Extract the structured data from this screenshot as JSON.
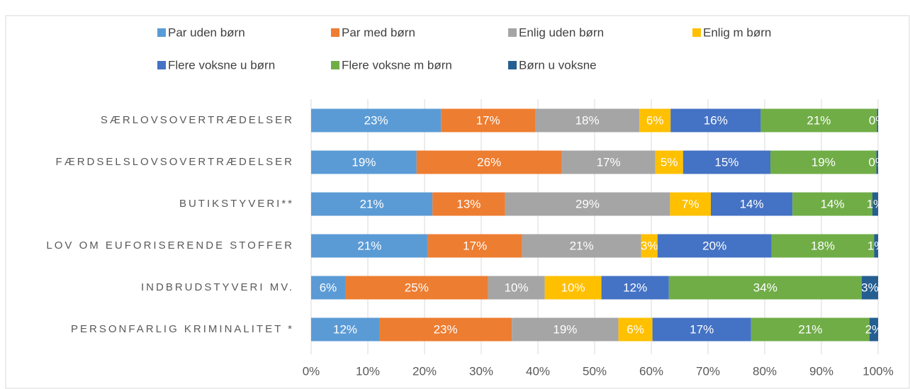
{
  "chart_data": {
    "type": "stacked_barh",
    "categories": [
      "SÆRLOVSOVERTRÆDELSER",
      "FÆRDSELSLOVSOVERTRÆDELSER",
      "BUTIKSTYVERI**",
      "LOV OM EUFORISERENDE STOFFER",
      "INDBRUDSTYVERI MV.",
      "PERSONFARLIG KRIMINALITET *"
    ],
    "series": [
      {
        "name": "Par uden børn",
        "color": "#5b9bd5",
        "values": [
          22.9,
          18.6,
          21.4,
          20.6,
          6,
          12
        ],
        "value_labels": [
          "23%",
          "19%",
          "21%",
          "21%",
          "6%",
          "12%"
        ]
      },
      {
        "name": "Par med børn",
        "color": "#ed7d31",
        "values": [
          16.6,
          25.6,
          12.8,
          16.6,
          25.2,
          23.4
        ],
        "value_labels": [
          "17%",
          "26%",
          "13%",
          "17%",
          "25%",
          "23%"
        ]
      },
      {
        "name": "Enlig uden børn",
        "color": "#a5a5a5",
        "values": [
          18.4,
          16.5,
          29.1,
          21,
          10,
          18.8
        ],
        "value_labels": [
          "18%",
          "17%",
          "29%",
          "21%",
          "10%",
          "19%"
        ]
      },
      {
        "name": "Enlig m børn",
        "color": "#ffc000",
        "values": [
          5.5,
          4.9,
          7.2,
          2.9,
          10,
          6
        ],
        "value_labels": [
          "6%",
          "5%",
          "7%",
          "3%",
          "10%",
          "6%"
        ]
      },
      {
        "name": "Flere voksne u børn",
        "color": "#4472c4",
        "values": [
          15.9,
          15.4,
          14.4,
          20.1,
          11.9,
          17.4
        ],
        "value_labels": [
          "16%",
          "15%",
          "14%",
          "20%",
          "12%",
          "17%"
        ]
      },
      {
        "name": "Flere voksne m børn",
        "color": "#70ad47",
        "values": [
          20.5,
          18.7,
          14.1,
          18.1,
          34,
          20.9
        ],
        "value_labels": [
          "21%",
          "19%",
          "14%",
          "18%",
          "34%",
          "21%"
        ]
      },
      {
        "name": "Børn u voksne",
        "color": "#255e91",
        "values": [
          0.2,
          0.3,
          1,
          0.7,
          2.9,
          1.5
        ],
        "value_labels": [
          "0%",
          "0%",
          "1%",
          "1%",
          "3%",
          "2%"
        ]
      }
    ],
    "xlim": [
      0,
      100
    ],
    "xticks": [
      {
        "value": 0,
        "label": "0%"
      },
      {
        "value": 10,
        "label": "10%"
      },
      {
        "value": 20,
        "label": "20%"
      },
      {
        "value": 30,
        "label": "30%"
      },
      {
        "value": 40,
        "label": "40%"
      },
      {
        "value": 50,
        "label": "50%"
      },
      {
        "value": 60,
        "label": "60%"
      },
      {
        "value": 70,
        "label": "70%"
      },
      {
        "value": 80,
        "label": "80%"
      },
      {
        "value": 90,
        "label": "90%"
      },
      {
        "value": 100,
        "label": "100%"
      }
    ],
    "grid": true
  }
}
